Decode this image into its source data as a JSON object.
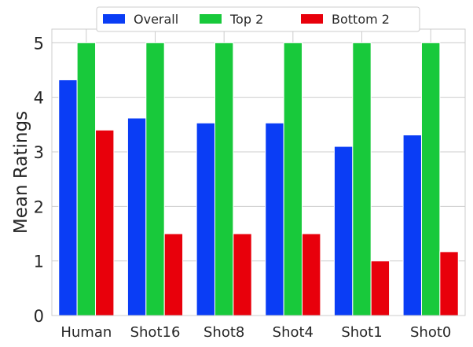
{
  "chart_data": {
    "type": "bar",
    "title": "",
    "xlabel": "",
    "ylabel": "Mean Ratings",
    "ylim": [
      0,
      5.25
    ],
    "yticks": [
      0,
      1,
      2,
      3,
      4,
      5
    ],
    "grid": true,
    "legend_position": "top-center",
    "categories": [
      "Human",
      "Shot16",
      "Shot8",
      "Shot4",
      "Shot1",
      "Shot0"
    ],
    "series": [
      {
        "name": "Overall",
        "color": "#0a3df5",
        "values": [
          4.32,
          3.62,
          3.53,
          3.53,
          3.1,
          3.31
        ]
      },
      {
        "name": "Top 2",
        "color": "#18c93b",
        "values": [
          5.0,
          5.0,
          5.0,
          5.0,
          5.0,
          5.0
        ]
      },
      {
        "name": "Bottom 2",
        "color": "#e8000b",
        "values": [
          3.4,
          1.5,
          1.5,
          1.5,
          1.0,
          1.17
        ]
      }
    ]
  }
}
